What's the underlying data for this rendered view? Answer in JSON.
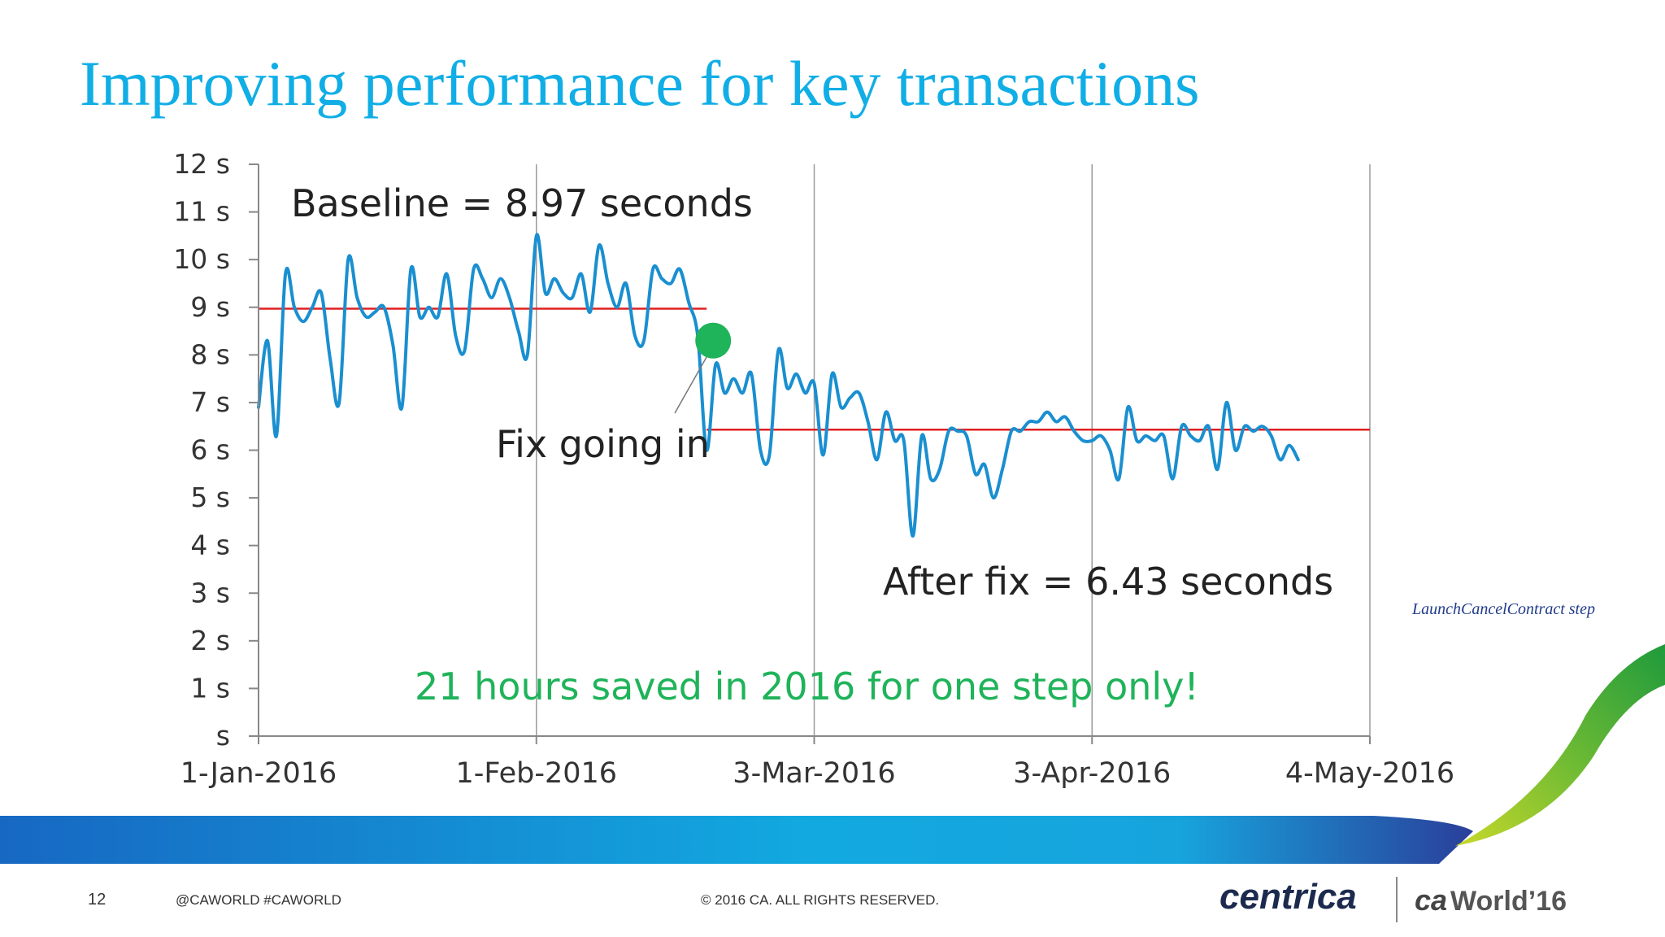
{
  "slide": {
    "title": "Improving performance for key transactions",
    "step_note": "LaunchCancelContract  step",
    "footer": {
      "page_number": "12",
      "social": "@CAWORLD    #CAWORLD",
      "copyright": "© 2016 CA. ALL RIGHTS RESERVED."
    },
    "logos": {
      "centrica": "centrica",
      "ca_world_prefix": "ca",
      "ca_world_suffix": "World’16"
    },
    "colors": {
      "title": "#11aee6",
      "series": "#1a8fd0",
      "baseline": "#e02020",
      "marker": "#1fb35a",
      "savings_text": "#1fb35a"
    }
  },
  "chart_data": {
    "type": "line",
    "title": "",
    "xlabel": "",
    "ylabel": "",
    "ylim": [
      0,
      12
    ],
    "y_ticks": [
      0,
      1,
      2,
      3,
      4,
      5,
      6,
      7,
      8,
      9,
      10,
      11,
      12
    ],
    "y_tick_labels": [
      "s",
      "1 s",
      "2 s",
      "3 s",
      "4 s",
      "5 s",
      "6 s",
      "7 s",
      "8 s",
      "9 s",
      "10 s",
      "11 s",
      "12 s"
    ],
    "x_ticks": [
      "2016-01-01",
      "2016-02-01",
      "2016-03-03",
      "2016-04-03",
      "2016-05-04"
    ],
    "x_tick_labels": [
      "1-Jan-2016",
      "1-Feb-2016",
      "3-Mar-2016",
      "3-Apr-2016",
      "4-May-2016"
    ],
    "xlim": [
      "2016-01-01",
      "2016-05-04"
    ],
    "grid": "vertical",
    "series": [
      {
        "values": [
          [
            "2016-01-01",
            6.9
          ],
          [
            "2016-01-02",
            8.3
          ],
          [
            "2016-01-03",
            6.3
          ],
          [
            "2016-01-04",
            9.7
          ],
          [
            "2016-01-05",
            9.0
          ],
          [
            "2016-01-06",
            8.7
          ],
          [
            "2016-01-07",
            9.0
          ],
          [
            "2016-01-08",
            9.3
          ],
          [
            "2016-01-09",
            7.9
          ],
          [
            "2016-01-10",
            7.0
          ],
          [
            "2016-01-11",
            10.0
          ],
          [
            "2016-01-12",
            9.2
          ],
          [
            "2016-01-13",
            8.8
          ],
          [
            "2016-01-14",
            8.9
          ],
          [
            "2016-01-15",
            9.0
          ],
          [
            "2016-01-16",
            8.2
          ],
          [
            "2016-01-17",
            6.9
          ],
          [
            "2016-01-18",
            9.8
          ],
          [
            "2016-01-19",
            8.8
          ],
          [
            "2016-01-20",
            9.0
          ],
          [
            "2016-01-21",
            8.8
          ],
          [
            "2016-01-22",
            9.7
          ],
          [
            "2016-01-23",
            8.4
          ],
          [
            "2016-01-24",
            8.1
          ],
          [
            "2016-01-25",
            9.8
          ],
          [
            "2016-01-26",
            9.6
          ],
          [
            "2016-01-27",
            9.2
          ],
          [
            "2016-01-28",
            9.6
          ],
          [
            "2016-01-29",
            9.2
          ],
          [
            "2016-01-30",
            8.5
          ],
          [
            "2016-01-31",
            8.0
          ],
          [
            "2016-02-01",
            10.5
          ],
          [
            "2016-02-02",
            9.3
          ],
          [
            "2016-02-03",
            9.6
          ],
          [
            "2016-02-04",
            9.3
          ],
          [
            "2016-02-05",
            9.2
          ],
          [
            "2016-02-06",
            9.7
          ],
          [
            "2016-02-07",
            8.9
          ],
          [
            "2016-02-08",
            10.3
          ],
          [
            "2016-02-09",
            9.5
          ],
          [
            "2016-02-10",
            9.0
          ],
          [
            "2016-02-11",
            9.5
          ],
          [
            "2016-02-12",
            8.4
          ],
          [
            "2016-02-13",
            8.3
          ],
          [
            "2016-02-14",
            9.8
          ],
          [
            "2016-02-15",
            9.6
          ],
          [
            "2016-02-16",
            9.5
          ],
          [
            "2016-02-17",
            9.8
          ],
          [
            "2016-02-18",
            9.1
          ],
          [
            "2016-02-19",
            8.4
          ],
          [
            "2016-02-20",
            6.0
          ],
          [
            "2016-02-21",
            7.8
          ],
          [
            "2016-02-22",
            7.2
          ],
          [
            "2016-02-23",
            7.5
          ],
          [
            "2016-02-24",
            7.2
          ],
          [
            "2016-02-25",
            7.6
          ],
          [
            "2016-02-26",
            6.0
          ],
          [
            "2016-02-27",
            5.9
          ],
          [
            "2016-02-28",
            8.1
          ],
          [
            "2016-02-29",
            7.3
          ],
          [
            "2016-03-01",
            7.6
          ],
          [
            "2016-03-02",
            7.2
          ],
          [
            "2016-03-03",
            7.4
          ],
          [
            "2016-03-04",
            5.9
          ],
          [
            "2016-03-05",
            7.6
          ],
          [
            "2016-03-06",
            6.9
          ],
          [
            "2016-03-07",
            7.1
          ],
          [
            "2016-03-08",
            7.2
          ],
          [
            "2016-03-09",
            6.6
          ],
          [
            "2016-03-10",
            5.8
          ],
          [
            "2016-03-11",
            6.8
          ],
          [
            "2016-03-12",
            6.2
          ],
          [
            "2016-03-13",
            6.2
          ],
          [
            "2016-03-14",
            4.2
          ],
          [
            "2016-03-15",
            6.3
          ],
          [
            "2016-03-16",
            5.4
          ],
          [
            "2016-03-17",
            5.6
          ],
          [
            "2016-03-18",
            6.4
          ],
          [
            "2016-03-19",
            6.4
          ],
          [
            "2016-03-20",
            6.3
          ],
          [
            "2016-03-21",
            5.5
          ],
          [
            "2016-03-22",
            5.7
          ],
          [
            "2016-03-23",
            5.0
          ],
          [
            "2016-03-24",
            5.6
          ],
          [
            "2016-03-25",
            6.4
          ],
          [
            "2016-03-26",
            6.4
          ],
          [
            "2016-03-27",
            6.6
          ],
          [
            "2016-03-28",
            6.6
          ],
          [
            "2016-03-29",
            6.8
          ],
          [
            "2016-03-30",
            6.6
          ],
          [
            "2016-03-31",
            6.7
          ],
          [
            "2016-04-01",
            6.4
          ],
          [
            "2016-04-02",
            6.2
          ],
          [
            "2016-04-03",
            6.2
          ],
          [
            "2016-04-04",
            6.3
          ],
          [
            "2016-04-05",
            6.0
          ],
          [
            "2016-04-06",
            5.4
          ],
          [
            "2016-04-07",
            6.9
          ],
          [
            "2016-04-08",
            6.2
          ],
          [
            "2016-04-09",
            6.3
          ],
          [
            "2016-04-10",
            6.2
          ],
          [
            "2016-04-11",
            6.3
          ],
          [
            "2016-04-12",
            5.4
          ],
          [
            "2016-04-13",
            6.5
          ],
          [
            "2016-04-14",
            6.3
          ],
          [
            "2016-04-15",
            6.2
          ],
          [
            "2016-04-16",
            6.5
          ],
          [
            "2016-04-17",
            5.6
          ],
          [
            "2016-04-18",
            7.0
          ],
          [
            "2016-04-19",
            6.0
          ],
          [
            "2016-04-20",
            6.5
          ],
          [
            "2016-04-21",
            6.4
          ],
          [
            "2016-04-22",
            6.5
          ],
          [
            "2016-04-23",
            6.3
          ],
          [
            "2016-04-24",
            5.8
          ],
          [
            "2016-04-25",
            6.1
          ],
          [
            "2016-04-26",
            5.8
          ]
        ]
      }
    ],
    "reference_lines": [
      {
        "value": 8.97,
        "from": "2016-01-01",
        "to": "2016-02-20"
      },
      {
        "value": 6.43,
        "from": "2016-02-20",
        "to": "2016-05-04"
      }
    ],
    "marker": {
      "x": "2016-02-20",
      "y": 8.3
    },
    "annotations": {
      "baseline": "Baseline = 8.97 seconds",
      "fix": "Fix going in",
      "after": "After fix = 6.43 seconds",
      "savings": "21 hours saved in 2016 for one step only!"
    }
  }
}
